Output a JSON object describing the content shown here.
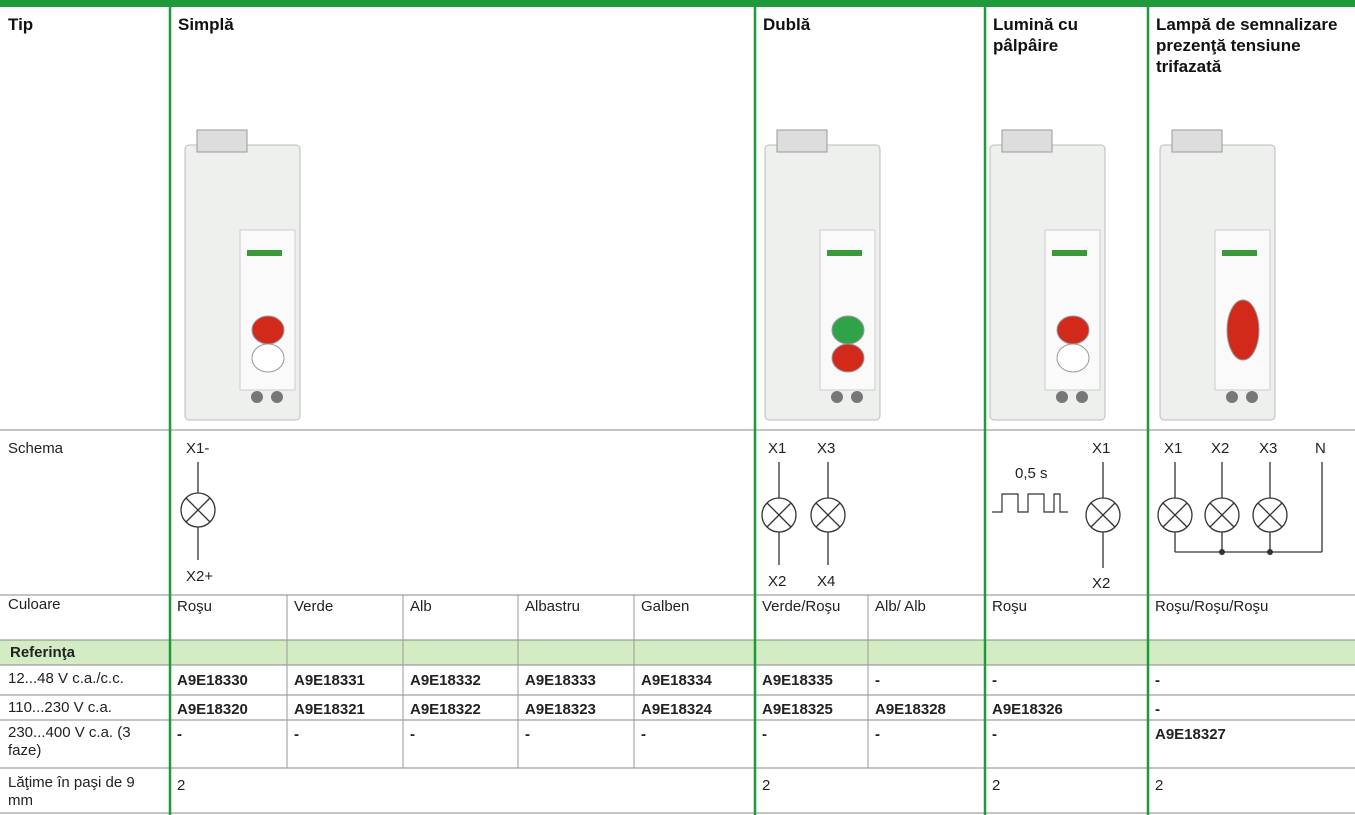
{
  "header": [
    "Tip",
    "Simplă",
    "Dublă",
    "Lumină cu pâlpâire",
    "Lampă de semnalizare prezenţă tensiune trifazată"
  ],
  "schema": {
    "label": "Schema",
    "simpla": [
      "X1-",
      "X2+"
    ],
    "dubla": [
      "X1",
      "X3",
      "X2",
      "X4"
    ],
    "lumina": [
      "0,5 s",
      "X1",
      "X2"
    ],
    "lampa": [
      "X1",
      "X2",
      "X3",
      "N"
    ]
  },
  "culoare": {
    "label": "Culoare",
    "cells": [
      "Roşu",
      "Verde",
      "Alb",
      "Albastru",
      "Galben",
      "Verde/Roşu",
      "Alb/ Alb",
      "Roşu",
      "Roşu/Roşu/Roşu"
    ]
  },
  "referinta": {
    "title": "Referinţa",
    "rows": [
      {
        "label": "12...48 V c.a./c.c.",
        "cells": [
          "A9E18330",
          "A9E18331",
          "A9E18332",
          "A9E18333",
          "A9E18334",
          "A9E18335",
          "-",
          "-",
          "-"
        ]
      },
      {
        "label": "110...230 V c.a.",
        "cells": [
          "A9E18320",
          "A9E18321",
          "A9E18322",
          "A9E18323",
          "A9E18324",
          "A9E18325",
          "A9E18328",
          "A9E18326",
          "-"
        ]
      },
      {
        "label": "230...400 V c.a. (3 faze)",
        "cells": [
          "-",
          "-",
          "-",
          "-",
          "-",
          "-",
          "-",
          "-",
          "A9E18327"
        ]
      }
    ]
  },
  "latime": {
    "label": "Lăţime în paşi de 9 mm",
    "cells": [
      2,
      2,
      2,
      2
    ]
  }
}
